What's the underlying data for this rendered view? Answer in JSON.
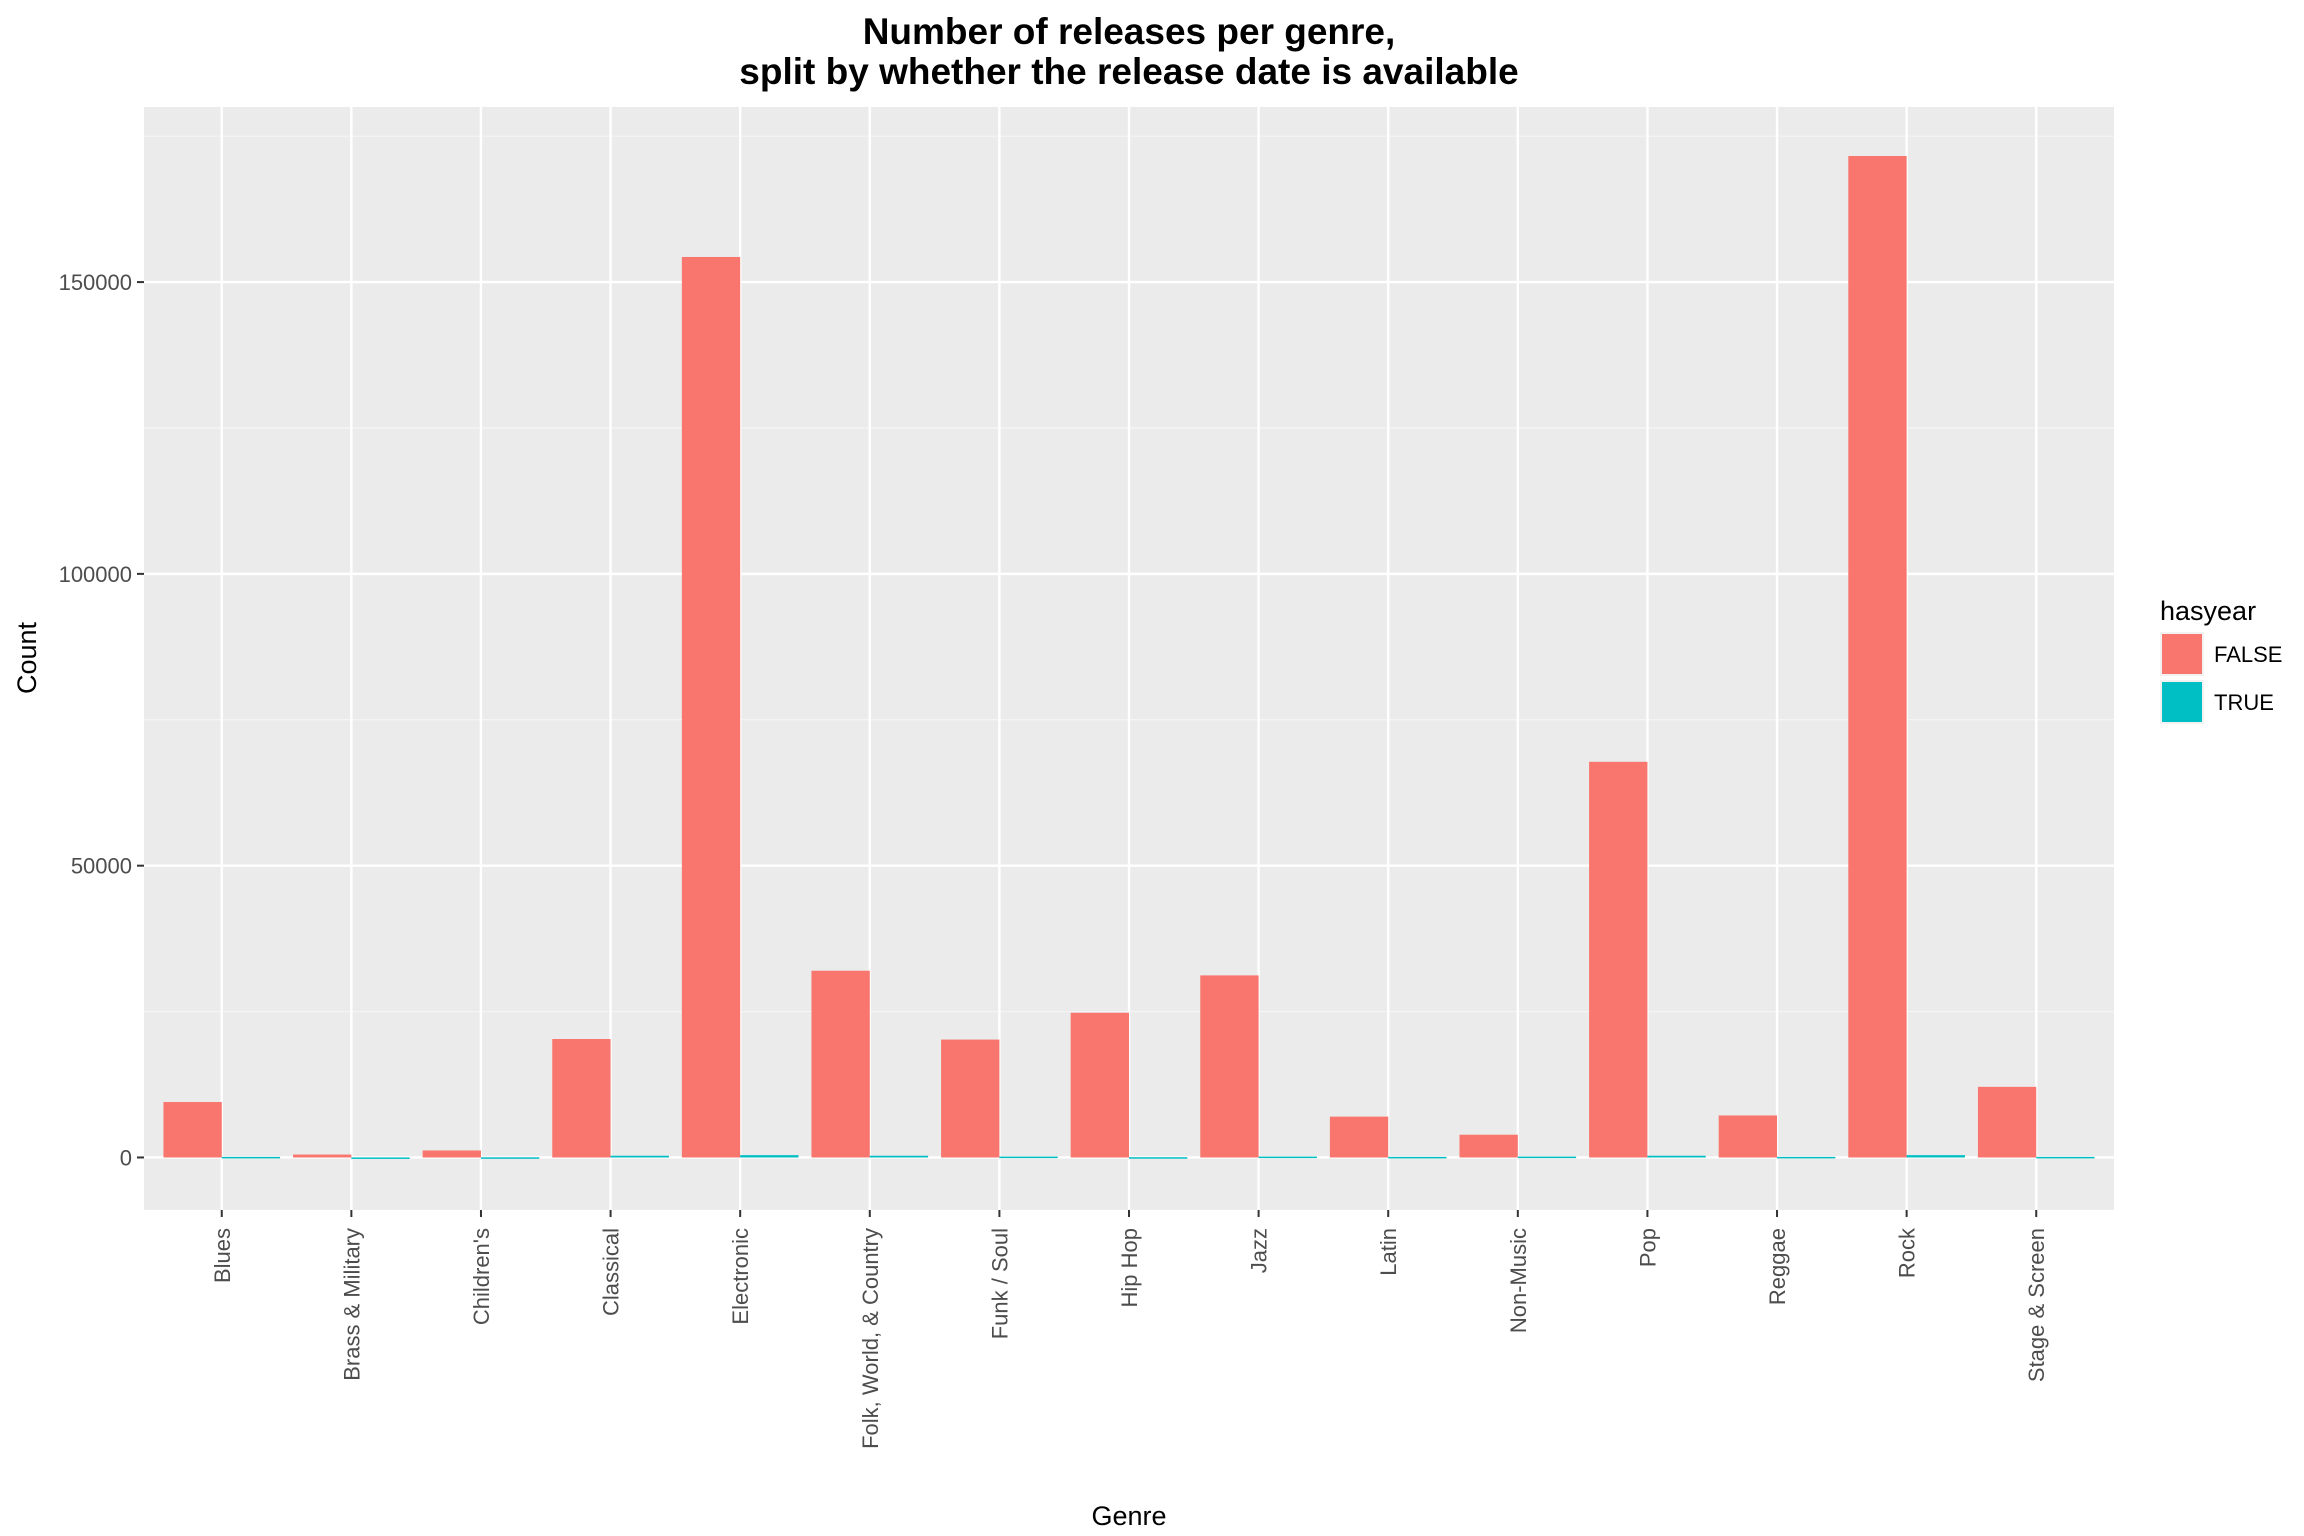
{
  "chart_data": {
    "type": "bar",
    "title_line1": "Number of releases per genre,",
    "title_line2": "split by whether the release date is available",
    "xlabel": "Genre",
    "ylabel": "Count",
    "ylim": [
      -9000,
      180000
    ],
    "yticks": [
      0,
      50000,
      100000,
      150000
    ],
    "grid": true,
    "legend_position": "right",
    "legend_title": "hasyear",
    "categories": [
      "Blues",
      "Brass & Military",
      "Children's",
      "Classical",
      "Electronic",
      "Folk, World, & Country",
      "Funk / Soul",
      "Hip Hop",
      "Jazz",
      "Latin",
      "Non-Music",
      "Pop",
      "Reggae",
      "Rock",
      "Stage & Screen"
    ],
    "series": [
      {
        "name": "FALSE",
        "color": "#F8766D",
        "values": [
          9500,
          500,
          1200,
          20300,
          154300,
          32000,
          20200,
          24800,
          31200,
          7000,
          3900,
          67800,
          7200,
          171600,
          12100
        ]
      },
      {
        "name": "TRUE",
        "color": "#00BFC4",
        "values": [
          100,
          10,
          30,
          300,
          400,
          300,
          150,
          50,
          150,
          100,
          150,
          300,
          100,
          400,
          100
        ]
      }
    ]
  }
}
